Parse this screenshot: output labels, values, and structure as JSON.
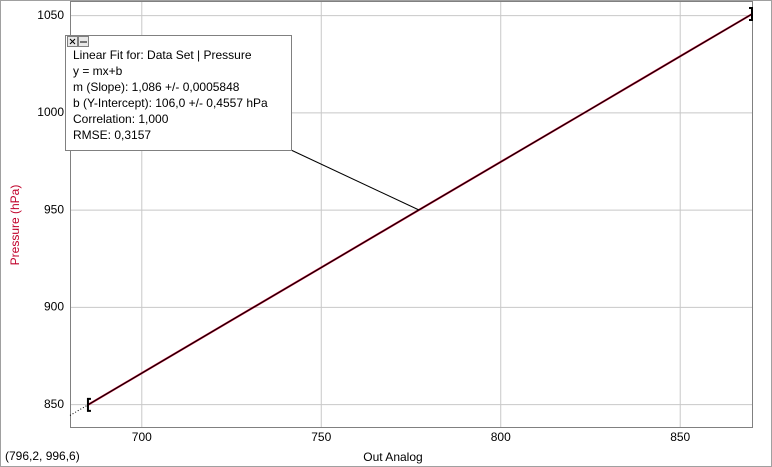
{
  "chart_data": {
    "type": "line",
    "x_label": "Out Analog",
    "y_label": "Pressure (hPa)",
    "x": [
      685,
      700,
      725,
      750,
      775,
      800,
      825,
      850,
      870
    ],
    "series": [
      {
        "color": "#c0002a",
        "values": [
          849.9,
          866.2,
          893.4,
          920.5,
          947.7,
          974.8,
          1001.9,
          1029.1,
          1050.8
        ]
      },
      {
        "color": "#000000",
        "values": [
          849.9,
          866.2,
          893.4,
          920.5,
          947.7,
          974.8,
          1001.9,
          1029.1,
          1050.8
        ]
      }
    ],
    "xlim": [
      680,
      870
    ],
    "ylim": [
      838,
      1057
    ],
    "xticks": [
      700,
      750,
      800,
      850
    ],
    "yticks": [
      850,
      900,
      950,
      1000,
      1050
    ],
    "grid": true,
    "annotation": {
      "lines": [
        "Linear Fit for:  Data Set | Pressure",
        "y = mx+b",
        "m (Slope): 1,086 +/- 0,0005848",
        "b (Y-Intercept): 106,0 +/- 0,4557 hPa",
        "Correlation: 1,000",
        "RMSE: 0,3157"
      ]
    },
    "status": "(796,2, 996,6)"
  }
}
